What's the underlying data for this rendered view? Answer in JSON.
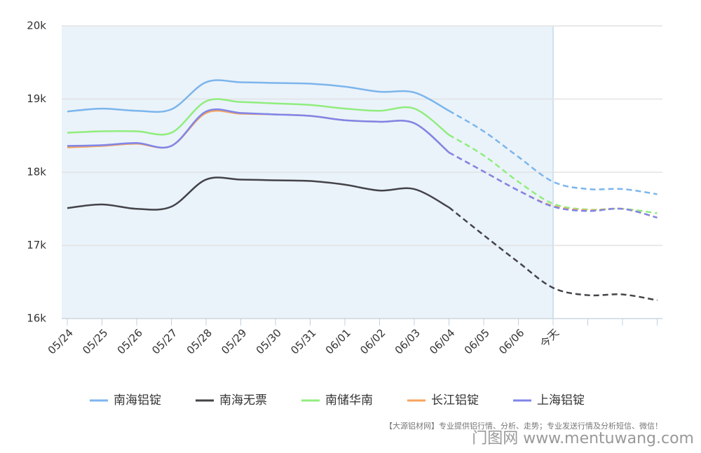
{
  "chart_data": {
    "type": "line",
    "categories": [
      "05/24",
      "05/25",
      "05/26",
      "05/27",
      "05/28",
      "05/29",
      "05/30",
      "05/31",
      "06/01",
      "06/02",
      "06/03",
      "06/04",
      "06/05",
      "06/06",
      "今天",
      null,
      null,
      null
    ],
    "series": [
      {
        "name": "南海铝锭",
        "color": "#7cb5ec",
        "values": [
          18830,
          18870,
          18840,
          18860,
          19230,
          19230,
          19220,
          19210,
          19170,
          19100,
          19090,
          18840,
          18560,
          18210,
          17870,
          17770,
          17770,
          17700
        ]
      },
      {
        "name": "南海无票",
        "color": "#434348",
        "values": [
          17510,
          17560,
          17500,
          17530,
          17900,
          17900,
          17890,
          17880,
          17830,
          17750,
          17770,
          17520,
          17140,
          16770,
          16420,
          16320,
          16330,
          16250
        ]
      },
      {
        "name": "南储华南",
        "color": "#90ed7d",
        "values": [
          18540,
          18560,
          18560,
          18540,
          18970,
          18960,
          18940,
          18920,
          18870,
          18840,
          18870,
          18510,
          18230,
          17870,
          17570,
          17490,
          17500,
          17440
        ]
      },
      {
        "name": "长江铝锭",
        "color": "#f7a35c",
        "values": [
          18340,
          18360,
          18390,
          18360,
          18810,
          18800,
          18790,
          18770,
          18710,
          18690,
          18670,
          18270,
          18010,
          17750,
          17540,
          17480,
          17500,
          17380
        ]
      },
      {
        "name": "上海铝锭",
        "color": "#8085e9",
        "values": [
          18360,
          18370,
          18400,
          18360,
          18830,
          18810,
          18790,
          18770,
          18710,
          18690,
          18670,
          18270,
          18010,
          17750,
          17530,
          17470,
          17500,
          17380
        ]
      }
    ],
    "ylim": [
      16000,
      20000
    ],
    "yticks": [
      {
        "value": 16000,
        "label": "16k"
      },
      {
        "value": 17000,
        "label": "17k"
      },
      {
        "value": 18000,
        "label": "18k"
      },
      {
        "value": 19000,
        "label": "19k"
      },
      {
        "value": 20000,
        "label": "20k"
      }
    ],
    "grid": true,
    "dashed_from": 11,
    "shaded_until": 14,
    "legend": "bottom",
    "footnote": "【大源铝材网】专业提供铝行情、分析、走势；专业发送行情及分析短信、微信！",
    "watermark": "门图网 www.mentuwang.com"
  }
}
